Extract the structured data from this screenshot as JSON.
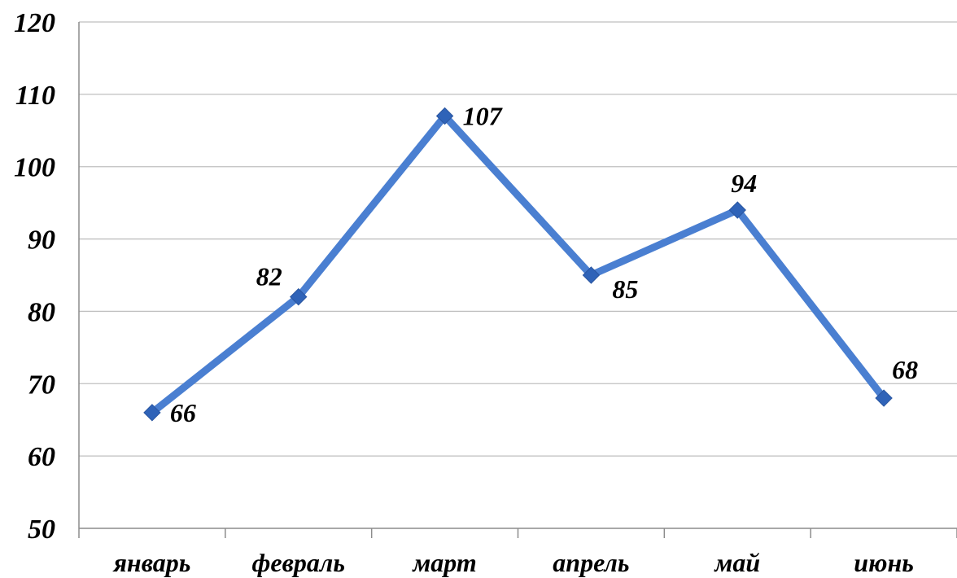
{
  "chart_data": {
    "type": "line",
    "title": "",
    "xlabel": "",
    "ylabel": "",
    "categories": [
      "январь",
      "февраль",
      "март",
      "апрель",
      "май",
      "июнь"
    ],
    "series": [
      {
        "values": [
          66,
          82,
          107,
          85,
          94,
          68
        ],
        "color": "#4a7fd1"
      }
    ],
    "ylim": [
      50,
      120
    ],
    "yticks": [
      "50",
      "60",
      "70",
      "80",
      "90",
      "100",
      "110",
      "120"
    ],
    "data_labels": [
      "66",
      "82",
      "107",
      "85",
      "94",
      "68"
    ],
    "data_label_positions": [
      "right",
      "above-left",
      "right",
      "below-right",
      "above",
      "above-right"
    ],
    "grid": true,
    "legend": "none",
    "marker": "diamond",
    "marker_color": "#2f63b8",
    "gridline_color": "#bfbfbf"
  }
}
